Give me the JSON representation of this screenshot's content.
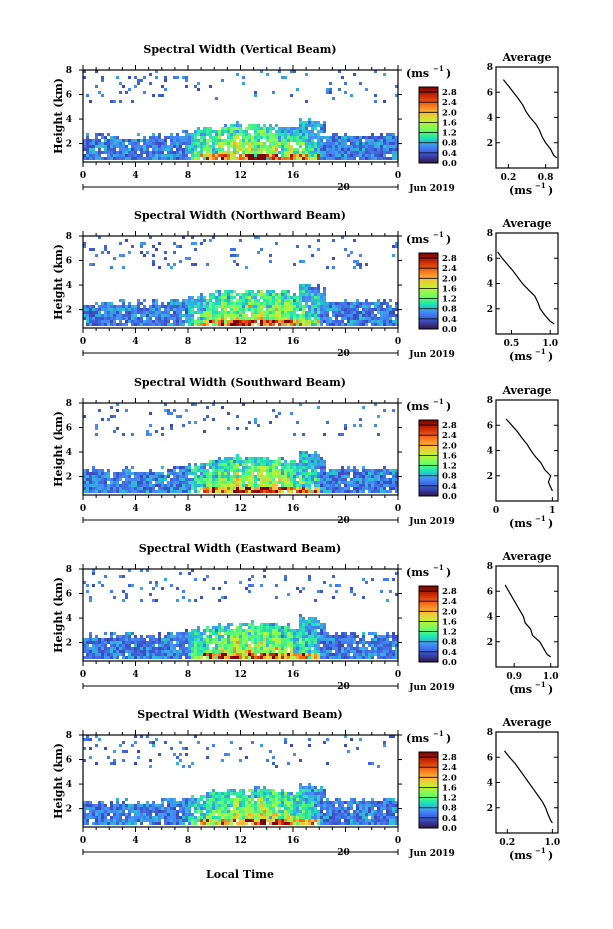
{
  "figure": {
    "x_axis_label": "Local Time",
    "x_date_label": "Jun 2019",
    "x_day_label": "20",
    "average_title": "Average",
    "average_unit": "(ms",
    "unit_exponent": "−1",
    "unit_close": ")",
    "colorbar_unit": "(ms",
    "colorscale": [
      "#30123b",
      "#3b4cc0",
      "#4686fb",
      "#1ae4b6",
      "#72fe5e",
      "#c8ef34",
      "#faba39",
      "#f66b19",
      "#ca2a04",
      "#7a0403"
    ]
  },
  "chart_data": [
    {
      "type": "heatmap",
      "title": "Spectral Width (Vertical Beam)",
      "ylabel": "Height (km)",
      "xlabel": "Local Time",
      "x_ticks": [
        "0",
        "4",
        "8",
        "12",
        "16",
        "20",
        "0"
      ],
      "y_ticks": [
        "2",
        "4",
        "6",
        "8"
      ],
      "xlim": [
        0,
        24
      ],
      "ylim": [
        0.5,
        8
      ],
      "colorbar": {
        "ticks": [
          "0.0",
          "0.4",
          "0.8",
          "1.2",
          "1.6",
          "2.0",
          "2.4",
          "2.8"
        ],
        "range": [
          0,
          3
        ]
      },
      "average_profile": {
        "x_ticks": [
          "0.2",
          "0.8"
        ],
        "xlim": [
          0,
          1.0
        ],
        "y_ticks": [
          "2",
          "4",
          "6",
          "8"
        ],
        "heights": [
          0.8,
          1.0,
          1.5,
          2.0,
          2.5,
          3.0,
          3.5,
          4.0,
          4.5,
          5.0,
          5.5,
          6.0,
          6.5,
          7.0
        ],
        "values": [
          0.98,
          0.93,
          0.88,
          0.8,
          0.74,
          0.7,
          0.64,
          0.55,
          0.48,
          0.43,
          0.36,
          0.28,
          0.2,
          0.12
        ]
      }
    },
    {
      "type": "heatmap",
      "title": "Spectral Width (Northward Beam)",
      "ylabel": "Height (km)",
      "xlabel": "Local Time",
      "x_ticks": [
        "0",
        "4",
        "8",
        "12",
        "16",
        "20",
        "0"
      ],
      "y_ticks": [
        "2",
        "4",
        "6",
        "8"
      ],
      "xlim": [
        0,
        24
      ],
      "ylim": [
        0.5,
        8
      ],
      "colorbar": {
        "ticks": [
          "0.0",
          "0.4",
          "0.8",
          "1.2",
          "1.6",
          "2.0",
          "2.4",
          "2.8"
        ],
        "range": [
          0,
          3
        ]
      },
      "average_profile": {
        "x_ticks": [
          "0.5",
          "1.0"
        ],
        "xlim": [
          0.3,
          1.1
        ],
        "y_ticks": [
          "2",
          "4",
          "6",
          "8"
        ],
        "heights": [
          0.8,
          1.0,
          1.5,
          2.0,
          2.5,
          3.0,
          3.5,
          4.0,
          4.5,
          5.0,
          5.5,
          6.0,
          6.5
        ],
        "values": [
          1.05,
          1.0,
          0.93,
          0.87,
          0.84,
          0.8,
          0.72,
          0.64,
          0.58,
          0.52,
          0.45,
          0.38,
          0.32
        ]
      }
    },
    {
      "type": "heatmap",
      "title": "Spectral Width (Southward Beam)",
      "ylabel": "Height (km)",
      "xlabel": "Local Time",
      "x_ticks": [
        "0",
        "4",
        "8",
        "12",
        "16",
        "20",
        "0"
      ],
      "y_ticks": [
        "2",
        "4",
        "6",
        "8"
      ],
      "xlim": [
        0,
        24
      ],
      "ylim": [
        0.5,
        8
      ],
      "colorbar": {
        "ticks": [
          "0.0",
          "0.4",
          "0.8",
          "1.2",
          "1.6",
          "2.0",
          "2.4",
          "2.8"
        ],
        "range": [
          0,
          3
        ]
      },
      "average_profile": {
        "x_ticks": [
          "0",
          "1"
        ],
        "xlim": [
          0,
          1.1
        ],
        "y_ticks": [
          "2",
          "4",
          "6",
          "8"
        ],
        "heights": [
          0.8,
          1.0,
          1.5,
          2.0,
          2.5,
          3.0,
          3.5,
          4.0,
          4.5,
          5.0,
          5.5,
          6.0,
          6.5
        ],
        "values": [
          1.0,
          0.98,
          0.93,
          0.97,
          0.86,
          0.8,
          0.7,
          0.62,
          0.55,
          0.46,
          0.38,
          0.28,
          0.18
        ]
      }
    },
    {
      "type": "heatmap",
      "title": "Spectral Width (Eastward Beam)",
      "ylabel": "Height (km)",
      "xlabel": "Local Time",
      "x_ticks": [
        "0",
        "4",
        "8",
        "12",
        "16",
        "20",
        "0"
      ],
      "y_ticks": [
        "2",
        "4",
        "6",
        "8"
      ],
      "xlim": [
        0,
        24
      ],
      "ylim": [
        0.5,
        8
      ],
      "colorbar": {
        "ticks": [
          "0.0",
          "0.4",
          "0.8",
          "1.2",
          "1.6",
          "2.0",
          "2.4",
          "2.8"
        ],
        "range": [
          0,
          3
        ]
      },
      "average_profile": {
        "x_ticks": [
          "0.9",
          "1.0"
        ],
        "xlim": [
          0.85,
          1.02
        ],
        "y_ticks": [
          "2",
          "4",
          "6",
          "8"
        ],
        "heights": [
          0.8,
          1.0,
          1.5,
          2.0,
          2.5,
          3.0,
          3.5,
          4.0,
          4.5,
          5.0,
          5.5,
          6.0,
          6.5
        ],
        "values": [
          1.0,
          0.99,
          0.98,
          0.97,
          0.95,
          0.945,
          0.93,
          0.925,
          0.915,
          0.905,
          0.895,
          0.885,
          0.875
        ]
      }
    },
    {
      "type": "heatmap",
      "title": "Spectral Width (Westward Beam)",
      "ylabel": "Height (km)",
      "xlabel": "Local Time",
      "x_ticks": [
        "0",
        "4",
        "8",
        "12",
        "16",
        "20",
        "0"
      ],
      "y_ticks": [
        "2",
        "4",
        "6",
        "8"
      ],
      "xlim": [
        0,
        24
      ],
      "ylim": [
        0.5,
        8
      ],
      "colorbar": {
        "ticks": [
          "0.0",
          "0.4",
          "0.8",
          "1.2",
          "1.6",
          "2.0",
          "2.4",
          "2.8"
        ],
        "range": [
          0,
          3
        ]
      },
      "average_profile": {
        "x_ticks": [
          "0.2",
          "1.0"
        ],
        "xlim": [
          0,
          1.1
        ],
        "y_ticks": [
          "2",
          "4",
          "6",
          "8"
        ],
        "heights": [
          0.8,
          1.0,
          1.5,
          2.0,
          2.5,
          3.0,
          3.5,
          4.0,
          4.5,
          5.0,
          5.5,
          6.0,
          6.5
        ],
        "values": [
          1.0,
          0.97,
          0.92,
          0.88,
          0.82,
          0.74,
          0.66,
          0.58,
          0.5,
          0.42,
          0.34,
          0.24,
          0.15
        ]
      }
    }
  ]
}
